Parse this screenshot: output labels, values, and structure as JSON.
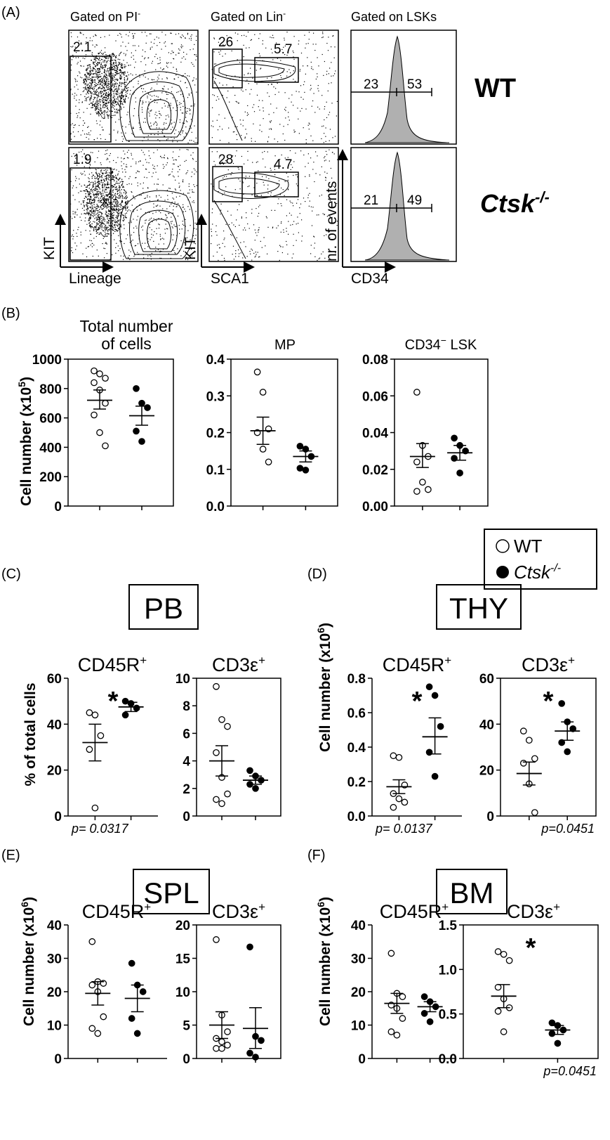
{
  "panel_labels": {
    "A": "(A)",
    "B": "(B)",
    "C": "(C)",
    "D": "(D)",
    "E": "(E)",
    "F": "(F)"
  },
  "panel_a": {
    "col_titles": [
      "Gated on PI",
      "Gated on Lin",
      "Gated on LSKs"
    ],
    "title_sup": "-",
    "rows": [
      {
        "label": "WT",
        "gate1": "2.1",
        "gate2a": "26",
        "gate2b": "5.7",
        "left": "23",
        "right": "53"
      },
      {
        "label": "Ctsk",
        "sup": "-/-",
        "gate1": "1.9",
        "gate2a": "28",
        "gate2b": "4.7",
        "left": "21",
        "right": "49"
      }
    ],
    "x_axes": [
      "Lineage",
      "SCA1",
      "CD34"
    ],
    "y_axes": [
      "KIT",
      "KIT",
      "nr. of events"
    ]
  },
  "legend": {
    "wt": "WT",
    "ko": "Ctsk",
    "ko_sup": "-/-"
  },
  "boxes": {
    "pb": "PB",
    "thy": "THY",
    "spl": "SPL",
    "bm": "BM"
  },
  "ylabels": {
    "b": "Cell number (x10",
    "b_sup": "5",
    "c": "% of total cells",
    "d": "Cell number (x10",
    "e": "Cell number (x10",
    "f": "Cell number (x10",
    "dsup": "6"
  },
  "chart_data": [
    {
      "id": "b1",
      "type": "scatter",
      "title": "Total number of cells",
      "title2": "of cells",
      "title1": "Total number",
      "ylim": [
        0,
        1000
      ],
      "ticks": [
        "0",
        "200",
        "400",
        "600",
        "800",
        "1000"
      ],
      "wt": [
        920,
        900,
        870,
        840,
        790,
        700,
        620,
        500,
        410
      ],
      "wt_mean": 720,
      "wt_sem": [
        660,
        790
      ],
      "ko": [
        800,
        700,
        670,
        510,
        440
      ],
      "ko_mean": 615,
      "ko_sem": [
        550,
        680
      ],
      "star": false,
      "p": ""
    },
    {
      "id": "b2",
      "type": "scatter",
      "title": "MP",
      "ylim": [
        0,
        0.4
      ],
      "ticks": [
        "0.0",
        "0.1",
        "0.2",
        "0.3",
        "0.4"
      ],
      "wt": [
        0.365,
        0.31,
        0.21,
        0.2,
        0.155,
        0.12
      ],
      "wt_mean": 0.205,
      "wt_sem": [
        0.168,
        0.242
      ],
      "ko": [
        0.163,
        0.155,
        0.135,
        0.103,
        0.098
      ],
      "ko_mean": 0.135,
      "ko_sem": [
        0.12,
        0.15
      ],
      "star": false,
      "p": ""
    },
    {
      "id": "b3",
      "type": "scatter",
      "title": "CD34",
      "title_sup": "−",
      "title_suffix": " LSK",
      "ylim": [
        0,
        0.08
      ],
      "ticks": [
        "0.00",
        "0.02",
        "0.04",
        "0.06",
        "0.08"
      ],
      "wt": [
        0.062,
        0.033,
        0.027,
        0.024,
        0.013,
        0.009,
        0.008
      ],
      "wt_mean": 0.027,
      "wt_sem": [
        0.021,
        0.034
      ],
      "ko": [
        0.037,
        0.033,
        0.03,
        0.026,
        0.018
      ],
      "ko_mean": 0.029,
      "ko_sem": [
        0.025,
        0.033
      ],
      "star": false,
      "p": ""
    },
    {
      "id": "c1",
      "type": "scatter",
      "title": "CD45R",
      "title_sup": "+",
      "ylim": [
        0,
        60
      ],
      "ticks": [
        "0",
        "20",
        "40",
        "60"
      ],
      "wt": [
        45,
        44,
        35,
        29,
        3.5
      ],
      "wt_mean": 32,
      "wt_sem": [
        24,
        40
      ],
      "ko": [
        50,
        49,
        47,
        44
      ],
      "ko_mean": 47.5,
      "ko_sem": [
        45.5,
        49.5
      ],
      "star": true,
      "p": "p= 0.0317"
    },
    {
      "id": "c2",
      "type": "scatter",
      "title": "CD3ε",
      "title_sup": "+",
      "ylim": [
        0,
        10
      ],
      "ticks": [
        "0",
        "2",
        "4",
        "6",
        "8",
        "10"
      ],
      "wt": [
        9.4,
        7,
        6.5,
        4.6,
        2.8,
        1.6,
        1.2,
        0.9
      ],
      "wt_mean": 4,
      "wt_sem": [
        2.9,
        5.1
      ],
      "ko": [
        3.3,
        2.9,
        2.6,
        2.3,
        2.0
      ],
      "ko_mean": 2.6,
      "ko_sem": [
        2.3,
        2.9
      ],
      "star": false,
      "p": ""
    },
    {
      "id": "d1",
      "type": "scatter",
      "title": "CD45R",
      "title_sup": "+",
      "ylim": [
        0,
        0.8
      ],
      "ticks": [
        "0.0",
        "0.2",
        "0.4",
        "0.6",
        "0.8"
      ],
      "wt": [
        0.35,
        0.34,
        0.18,
        0.13,
        0.1,
        0.08,
        0.05
      ],
      "wt_mean": 0.17,
      "wt_sem": [
        0.13,
        0.21
      ],
      "ko": [
        0.75,
        0.7,
        0.52,
        0.37,
        0.23
      ],
      "ko_mean": 0.46,
      "ko_sem": [
        0.36,
        0.57
      ],
      "star": true,
      "p": "p= 0.0137"
    },
    {
      "id": "d2",
      "type": "scatter",
      "title": "CD3ε",
      "title_sup": "+",
      "ylim": [
        0,
        60
      ],
      "ticks": [
        "0",
        "20",
        "40",
        "60"
      ],
      "wt": [
        37,
        33,
        25,
        23,
        14,
        1.5
      ],
      "wt_mean": 18.5,
      "wt_sem": [
        13.5,
        23.5
      ],
      "ko": [
        49,
        41,
        38,
        32,
        28
      ],
      "ko_mean": 37,
      "ko_sem": [
        33,
        41
      ],
      "star": true,
      "p": "p=0.0451"
    },
    {
      "id": "e1",
      "type": "scatter",
      "title": "CD45R",
      "title_sup": "+",
      "ylim": [
        0,
        40
      ],
      "ticks": [
        "0",
        "10",
        "20",
        "30",
        "40"
      ],
      "wt": [
        35,
        23,
        22.5,
        22,
        20,
        12.5,
        9,
        7.5
      ],
      "wt_mean": 19.5,
      "wt_sem": [
        16,
        23
      ],
      "ko": [
        28.5,
        22,
        20,
        12,
        7.5
      ],
      "ko_mean": 18,
      "ko_sem": [
        14,
        22
      ],
      "star": false,
      "p": ""
    },
    {
      "id": "e2",
      "type": "scatter",
      "title": "CD3ε",
      "title_sup": "+",
      "ylim": [
        0,
        20
      ],
      "ticks": [
        "0",
        "5",
        "10",
        "15",
        "20"
      ],
      "wt": [
        17.8,
        6.5,
        4,
        3,
        2.5,
        2,
        1.5,
        1.5
      ],
      "wt_mean": 5,
      "wt_sem": [
        3,
        7
      ],
      "ko": [
        16.7,
        3.3,
        2.7,
        0.8,
        0.2
      ],
      "ko_mean": 4.5,
      "ko_sem": [
        1.5,
        7.6
      ],
      "star": false,
      "p": ""
    },
    {
      "id": "f1",
      "type": "scatter",
      "title": "CD45R",
      "title_sup": "+",
      "ylim": [
        0,
        40
      ],
      "ticks": [
        "0",
        "10",
        "20",
        "30",
        "40"
      ],
      "wt": [
        31.5,
        19.5,
        18.5,
        16,
        15,
        12,
        8,
        7
      ],
      "wt_mean": 16.5,
      "wt_sem": [
        13.5,
        19.5
      ],
      "ko": [
        18.5,
        17,
        15.5,
        13.5,
        11
      ],
      "ko_mean": 15.5,
      "ko_sem": [
        14,
        17
      ],
      "star": false,
      "p": ""
    },
    {
      "id": "f2",
      "type": "scatter",
      "title": "CD3ε",
      "title_sup": "+",
      "ylim": [
        0,
        1.5
      ],
      "ticks": [
        "0.0",
        "0.5",
        "1.0",
        "1.5"
      ],
      "wt": [
        1.2,
        1.17,
        1.1,
        0.8,
        0.67,
        0.57,
        0.53,
        0.3
      ],
      "wt_mean": 0.7,
      "wt_sem": [
        0.57,
        0.83
      ],
      "ko": [
        0.4,
        0.37,
        0.32,
        0.28,
        0.17
      ],
      "ko_mean": 0.32,
      "ko_sem": [
        0.27,
        0.37
      ],
      "star": true,
      "p": "p=0.0451"
    }
  ]
}
